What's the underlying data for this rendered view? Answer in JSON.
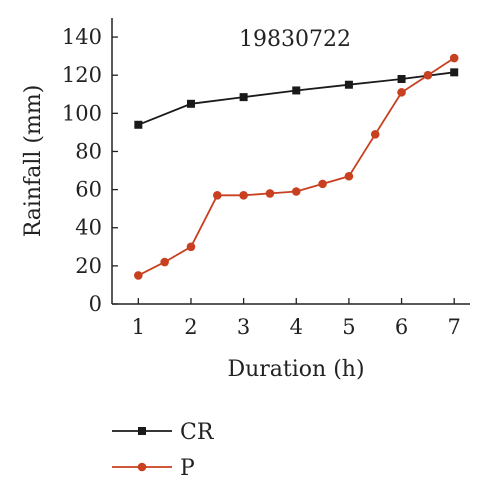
{
  "chart_data": {
    "type": "line",
    "title": "19830722",
    "xlabel": "Duration (h)",
    "ylabel": "Rainfall (mm)",
    "xlim": [
      0.5,
      7.3
    ],
    "ylim": [
      0,
      150
    ],
    "xticks": [
      1,
      2,
      3,
      4,
      5,
      6,
      7
    ],
    "yticks": [
      0,
      20,
      40,
      60,
      80,
      100,
      120,
      140
    ],
    "grid": false,
    "legend": "bottom-left",
    "series": [
      {
        "name": "CR",
        "color": "#1a1a1a",
        "marker": "square",
        "x": [
          1,
          2,
          3,
          4,
          5,
          6,
          7
        ],
        "y": [
          94,
          105,
          108.5,
          112,
          115,
          118,
          121.5
        ]
      },
      {
        "name": "P",
        "color": "#c8401f",
        "marker": "circle",
        "x": [
          1,
          1.5,
          2,
          2.5,
          3,
          3.5,
          4,
          4.5,
          5,
          5.5,
          6,
          6.5,
          7
        ],
        "y": [
          15,
          22,
          30,
          57,
          57,
          58,
          59,
          63,
          67,
          89,
          111,
          120,
          129
        ]
      }
    ]
  }
}
